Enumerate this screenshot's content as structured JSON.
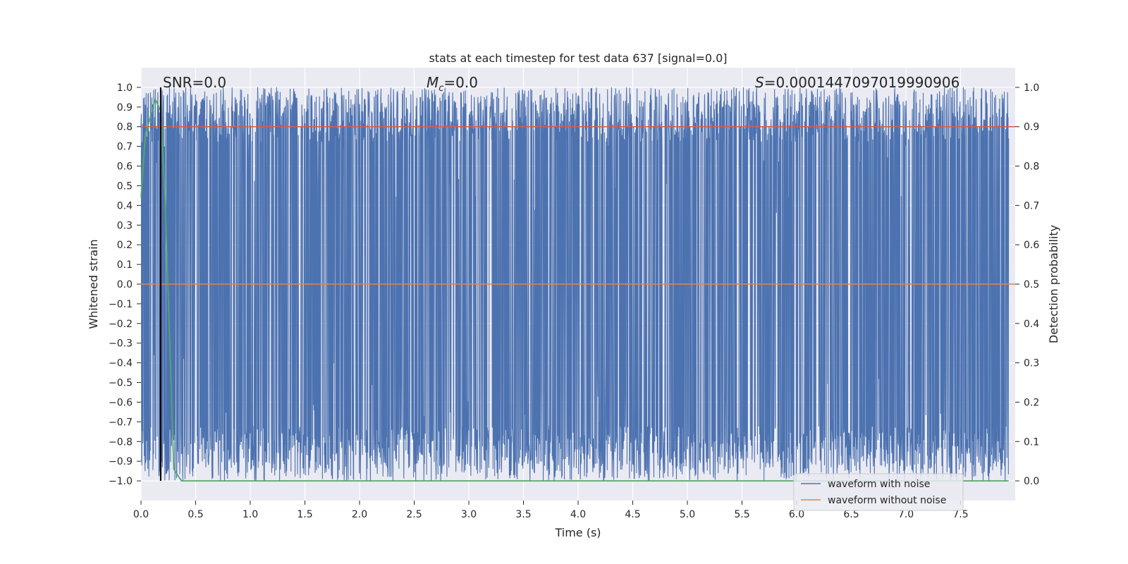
{
  "chart_data": {
    "type": "line",
    "title": "stats at each timestep for test data 637 [signal=0.0]",
    "xlabel": "Time (s)",
    "ylabel": "Whitened strain",
    "ylabel_right": "Detection probability",
    "xlim": [
      0.0,
      8.0
    ],
    "ylim": [
      -1.1,
      1.1
    ],
    "ylim_right": [
      -0.05,
      1.05
    ],
    "x_ticks": [
      0.0,
      0.5,
      1.0,
      1.5,
      2.0,
      2.5,
      3.0,
      3.5,
      4.0,
      4.5,
      5.0,
      5.5,
      6.0,
      6.5,
      7.0,
      7.5
    ],
    "x_tick_labels": [
      "0.0",
      "0.5",
      "1.0",
      "1.5",
      "2.0",
      "2.5",
      "3.0",
      "3.5",
      "4.0",
      "4.5",
      "5.0",
      "5.5",
      "6.0",
      "6.5",
      "7.0",
      "7.5"
    ],
    "y_ticks": [
      1.0,
      0.9,
      0.8,
      0.7,
      0.6,
      0.5,
      0.4,
      0.3,
      0.2,
      0.1,
      0.0,
      -0.1,
      -0.2,
      -0.3,
      -0.4,
      -0.5,
      -0.6,
      -0.7,
      -0.8,
      -0.9,
      -1.0
    ],
    "y_tick_labels": [
      "1.0",
      "0.9",
      "0.8",
      "0.7",
      "0.6",
      "0.5",
      "0.4",
      "0.3",
      "0.2",
      "0.1",
      "0.0",
      "−0.1",
      "−0.2",
      "−0.3",
      "−0.4",
      "−0.5",
      "−0.6",
      "−0.7",
      "−0.8",
      "−0.9",
      "−1.0"
    ],
    "y_right_ticks": [
      1.0,
      0.9,
      0.8,
      0.7,
      0.6,
      0.5,
      0.4,
      0.3,
      0.2,
      0.1,
      0.0
    ],
    "y_right_tick_labels": [
      "1.0",
      "0.9",
      "0.8",
      "0.7",
      "0.6",
      "0.5",
      "0.4",
      "0.3",
      "0.2",
      "0.1",
      "0.0"
    ],
    "grid": true,
    "legend_placement": "bottom-right",
    "annotations": {
      "snr": "SNR=0.0",
      "mc_symbol": "M",
      "mc_sub": "c",
      "mc_value": "=0.0",
      "s_symbol": "S",
      "s_value": "=0.0001447097019990906"
    },
    "vertical_line_x": 0.18,
    "series": [
      {
        "name": "waveform with noise",
        "color": "#4c72b0",
        "description_type": "dense noise oscillating between -1.0 and 1.0 across 0.0-8.0 s"
      },
      {
        "name": "waveform without noise",
        "color": "#dd8452",
        "values_left_axis": [
          {
            "x": 0.0,
            "y": 0.0
          },
          {
            "x": 8.0,
            "y": 0.0
          }
        ]
      },
      {
        "color": "#dd5a45",
        "axis": "right",
        "values": [
          {
            "x": 0.0,
            "y": 0.9
          },
          {
            "x": 8.0,
            "y": 0.9
          }
        ]
      },
      {
        "color": "#55a868",
        "axis": "right",
        "values": [
          {
            "x": 0.0,
            "y": 0.72
          },
          {
            "x": 0.04,
            "y": 0.88
          },
          {
            "x": 0.08,
            "y": 0.92
          },
          {
            "x": 0.13,
            "y": 0.97
          },
          {
            "x": 0.18,
            "y": 0.94
          },
          {
            "x": 0.22,
            "y": 0.72
          },
          {
            "x": 0.26,
            "y": 0.38
          },
          {
            "x": 0.3,
            "y": 0.03
          },
          {
            "x": 0.37,
            "y": 0.0
          },
          {
            "x": 7.94,
            "y": 0.0
          }
        ]
      }
    ]
  },
  "colors": {
    "plot_bg": "#eaeaf2",
    "grid": "#ffffff",
    "noise": "#4c72b0",
    "clean": "#dd8452",
    "threshold": "#dd5a45",
    "probability": "#55a868",
    "vline": "#000000"
  }
}
